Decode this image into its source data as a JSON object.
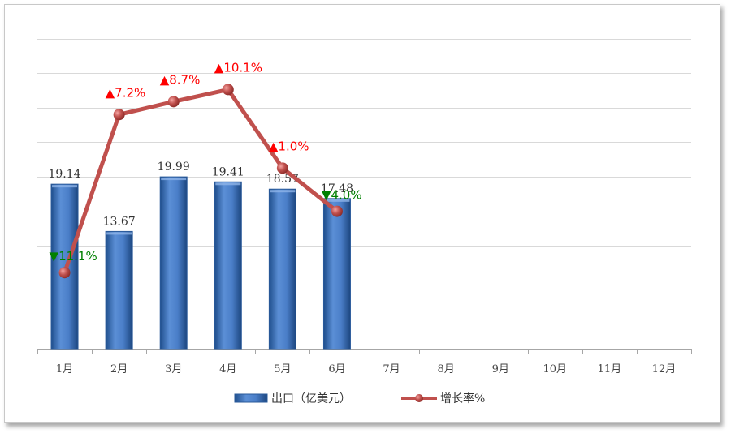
{
  "chart_data": {
    "type": "bar+line",
    "categories": [
      "1月",
      "2月",
      "3月",
      "4月",
      "5月",
      "6月",
      "7月",
      "8月",
      "9月",
      "10月",
      "11月",
      "12月"
    ],
    "series": [
      {
        "name": "出口（亿美元）",
        "type": "bar",
        "values": [
          19.14,
          13.67,
          19.99,
          19.41,
          18.57,
          17.48,
          null,
          null,
          null,
          null,
          null,
          null
        ],
        "color": "#3a6fb7"
      },
      {
        "name": "增长率%",
        "type": "line",
        "values": [
          -11.1,
          7.2,
          8.7,
          10.1,
          1.0,
          -4.0,
          null,
          null,
          null,
          null,
          null,
          null
        ],
        "labels": [
          "▼11.1%",
          "▲7.2%",
          "▲8.7%",
          "▲10.1%",
          "▲1.0%",
          "▼4.0%"
        ],
        "directions": [
          "down",
          "up",
          "up",
          "up",
          "up",
          "down"
        ],
        "color": "#c0504d"
      }
    ],
    "bar_ylim": [
      0,
      40
    ],
    "line_ylim": [
      -20,
      20
    ],
    "grid": true,
    "legend_position": "bottom",
    "colors": {
      "up": "#ff0000",
      "down": "#008000",
      "grid": "#d9d9d9"
    }
  }
}
